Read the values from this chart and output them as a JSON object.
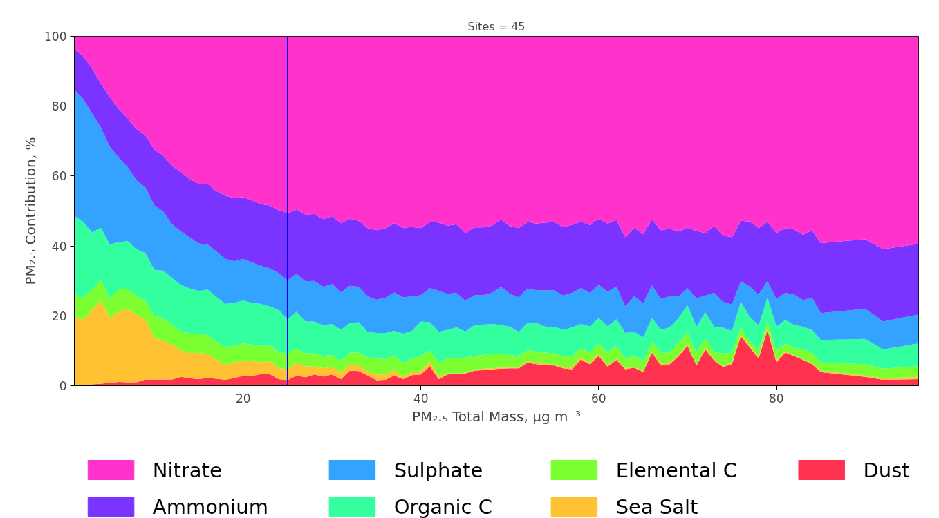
{
  "chart_data": {
    "type": "area",
    "stacked": true,
    "title": "Sites = 45",
    "xlabel": "PM₂.₅ Total Mass, μg m⁻³",
    "ylabel": "PM₂.₅ Contribution, %",
    "x": [
      1,
      2,
      3,
      4,
      5,
      6,
      7,
      8,
      9,
      10,
      11,
      12,
      13,
      14,
      15,
      16,
      17,
      18,
      19,
      20,
      21,
      22,
      23,
      24,
      25,
      26,
      27,
      28,
      29,
      30,
      31,
      32,
      33,
      34,
      35,
      36,
      37,
      38,
      39,
      40,
      41,
      42,
      43,
      44,
      45,
      46,
      47,
      48,
      49,
      50,
      51,
      52,
      53,
      54,
      55,
      56,
      57,
      58,
      59,
      60,
      61,
      62,
      63,
      64,
      65,
      66,
      67,
      68,
      69,
      70,
      71,
      72,
      73,
      74,
      75,
      76,
      77,
      78,
      79,
      80,
      81,
      82,
      83,
      84,
      85,
      90,
      92,
      96
    ],
    "series": [
      {
        "name": "Dust",
        "color": "#ff3350",
        "values": [
          0.3,
          0.3,
          0.4,
          0.6,
          0.8,
          1.1,
          1.0,
          1.0,
          1.8,
          1.7,
          1.8,
          1.8,
          2.5,
          2.1,
          1.9,
          2.2,
          2.0,
          1.7,
          2.2,
          2.8,
          2.8,
          3.3,
          3.3,
          1.9,
          1.6,
          2.9,
          2.4,
          3.2,
          2.6,
          3.2,
          1.9,
          4.3,
          4.2,
          2.9,
          1.6,
          1.7,
          2.9,
          1.9,
          3.0,
          3.2,
          5.6,
          1.9,
          3.2,
          3.4,
          3.5,
          4.3,
          4.5,
          4.7,
          4.9,
          5.0,
          5.0,
          6.6,
          6.2,
          6.0,
          5.8,
          5.0,
          4.7,
          7.5,
          6.2,
          8.5,
          5.5,
          7.4,
          4.7,
          5.2,
          3.9,
          9.5,
          5.8,
          6.2,
          8.5,
          11.4,
          5.8,
          10.4,
          7.2,
          5.4,
          6.2,
          14.2,
          10.9,
          7.8,
          15.9,
          6.7,
          9.5,
          8.5,
          7.4,
          6.2,
          3.9,
          2.5,
          1.7,
          1.9
        ]
      },
      {
        "name": "Sea Salt",
        "color": "#ffc233",
        "values": [
          19.3,
          18.6,
          21.3,
          23.8,
          18.5,
          20.2,
          21.0,
          19.3,
          17.1,
          12.1,
          11.0,
          10.0,
          7.6,
          7.3,
          7.5,
          6.9,
          5.4,
          4.3,
          4.5,
          4.2,
          4.2,
          3.4,
          3.7,
          3.1,
          3.2,
          3.6,
          3.2,
          2.3,
          2.4,
          2.2,
          2.0,
          1.7,
          1.6,
          1.3,
          1.6,
          1.5,
          1.6,
          0.7,
          0.9,
          1.0,
          1.2,
          0.7,
          0.3,
          0.1,
          0.2,
          0.2,
          0.4,
          0.3,
          0.3,
          0.2,
          0.2,
          0.4,
          0.3,
          0.3,
          0.2,
          0.4,
          0.5,
          0.5,
          0.3,
          0.6,
          0.3,
          0.2,
          0.3,
          0.2,
          0.3,
          0.3,
          0.5,
          0.3,
          0.3,
          0.4,
          0.2,
          0.4,
          0.3,
          0.2,
          0.3,
          0.4,
          0.5,
          0.4,
          0.5,
          0.5,
          0.3,
          0.3,
          0.1,
          0.3,
          0.3,
          0.4,
          0.4,
          0.6
        ]
      },
      {
        "name": "Elemental C",
        "color": "#7bff33",
        "values": [
          6.5,
          6.2,
          5.8,
          5.8,
          5.8,
          6.2,
          5.8,
          5.4,
          5.5,
          6.2,
          6.5,
          5.8,
          5.4,
          5.5,
          5.5,
          5.4,
          5.1,
          5.1,
          4.7,
          5.1,
          4.8,
          4.7,
          4.4,
          4.7,
          4.3,
          4.2,
          3.7,
          3.8,
          3.5,
          3.4,
          3.1,
          3.5,
          3.7,
          3.9,
          4.6,
          4.4,
          4.0,
          3.9,
          3.9,
          4.3,
          3.3,
          4.1,
          4.3,
          4.5,
          4.3,
          4.0,
          3.9,
          4.1,
          3.9,
          3.6,
          3.3,
          3.3,
          3.1,
          3.2,
          3.3,
          3.1,
          3.3,
          2.7,
          3.0,
          3.0,
          3.7,
          3.8,
          2.8,
          3.1,
          3.0,
          2.8,
          3.2,
          3.1,
          3.6,
          3.3,
          3.5,
          2.8,
          2.1,
          3.7,
          3.0,
          2.1,
          1.4,
          2.2,
          2.0,
          2.8,
          2.3,
          2.1,
          2.9,
          3.0,
          2.4,
          3.3,
          2.8,
          3.1
        ]
      },
      {
        "name": "Organic C",
        "color": "#33ff9f",
        "values": [
          22.5,
          21.8,
          16.3,
          15.0,
          15.3,
          13.6,
          13.6,
          13.3,
          13.6,
          13.2,
          13.6,
          13.3,
          13.3,
          12.9,
          12.2,
          13.0,
          12.9,
          12.3,
          12.3,
          12.3,
          11.9,
          12.0,
          11.3,
          12.0,
          9.8,
          10.5,
          9.1,
          9.1,
          8.8,
          8.9,
          9.0,
          8.4,
          8.7,
          7.3,
          7.3,
          7.5,
          7.2,
          8.4,
          7.9,
          9.9,
          8.1,
          8.7,
          8.2,
          8.7,
          7.5,
          8.8,
          8.7,
          8.6,
          8.3,
          8.1,
          6.9,
          7.7,
          8.4,
          7.4,
          7.6,
          7.5,
          8.2,
          7.0,
          7.5,
          7.3,
          7.5,
          7.6,
          7.3,
          6.9,
          6.6,
          6.8,
          6.5,
          7.1,
          7.0,
          7.9,
          7.4,
          7.4,
          7.3,
          7.3,
          6.2,
          7.3,
          6.9,
          6.9,
          6.8,
          6.9,
          6.7,
          6.5,
          6.5,
          6.5,
          6.5,
          7.2,
          5.5,
          6.5
        ]
      },
      {
        "name": "Sulphate",
        "color": "#33a3ff",
        "values": [
          36.1,
          35.1,
          34.1,
          28.6,
          27.9,
          24.2,
          21.1,
          19.8,
          18.7,
          18.4,
          17.0,
          15.3,
          15.3,
          14.6,
          13.6,
          12.9,
          13.0,
          12.9,
          11.9,
          11.9,
          11.6,
          10.9,
          10.9,
          10.5,
          11.3,
          10.8,
          11.5,
          11.6,
          11.0,
          11.4,
          10.7,
          10.7,
          10.1,
          10.2,
          9.5,
          10.1,
          11.0,
          10.4,
          9.9,
          7.5,
          9.7,
          11.7,
          10.3,
          9.9,
          8.8,
          8.6,
          8.4,
          8.9,
          10.9,
          9.4,
          9.9,
          9.8,
          9.3,
          10.4,
          10.4,
          9.8,
          9.9,
          10.2,
          9.6,
          9.5,
          9.9,
          9.4,
          7.6,
          10.2,
          9.8,
          9.3,
          8.8,
          8.9,
          6.2,
          4.9,
          8.1,
          4.8,
          9.7,
          7.4,
          7.5,
          5.9,
          8.7,
          8.8,
          4.7,
          7.9,
          7.8,
          8.7,
          7.6,
          9.2,
          7.7,
          8.6,
          8.0,
          8.3
        ]
      },
      {
        "name": "Ammonium",
        "color": "#7b33ff",
        "values": [
          11.7,
          12.2,
          12.9,
          12.6,
          14.3,
          13.9,
          14.0,
          14.6,
          15.0,
          16.0,
          16.0,
          16.7,
          17.1,
          16.7,
          17.1,
          17.4,
          17.3,
          18.1,
          18.1,
          17.7,
          17.7,
          17.7,
          18.0,
          18.1,
          19.2,
          18.5,
          19.1,
          19.1,
          19.4,
          19.4,
          19.8,
          19.2,
          18.9,
          19.5,
          19.9,
          19.9,
          19.8,
          19.9,
          19.8,
          19.2,
          19.0,
          19.6,
          19.5,
          19.6,
          19.4,
          19.4,
          19.4,
          19.2,
          19.3,
          19.4,
          19.8,
          19.1,
          19.1,
          19.4,
          19.5,
          19.6,
          19.4,
          19.1,
          19.4,
          18.9,
          19.5,
          19.0,
          19.8,
          19.6,
          19.8,
          18.9,
          19.7,
          19.3,
          18.5,
          17.3,
          19.3,
          17.9,
          19.1,
          19.0,
          19.3,
          17.3,
          18.6,
          19.0,
          17.0,
          18.9,
          18.5,
          18.6,
          18.7,
          19.3,
          20.0,
          19.9,
          20.7,
          20.2
        ]
      },
      {
        "name": "Nitrate",
        "color": "#ff33cc",
        "values": [
          3.6,
          5.8,
          9.2,
          13.6,
          17.4,
          20.8,
          23.5,
          26.6,
          28.3,
          32.4,
          34.1,
          37.1,
          38.8,
          40.9,
          42.2,
          42.2,
          44.3,
          45.6,
          46.3,
          46.0,
          47.0,
          48.0,
          48.4,
          49.7,
          50.6,
          49.5,
          51.0,
          50.9,
          52.3,
          51.5,
          53.5,
          52.2,
          52.8,
          54.9,
          55.5,
          54.9,
          53.5,
          54.8,
          54.6,
          54.9,
          53.1,
          53.3,
          54.2,
          53.8,
          56.3,
          54.7,
          54.7,
          54.2,
          52.4,
          54.3,
          54.9,
          53.1,
          53.6,
          53.3,
          53.2,
          54.6,
          54.0,
          53.0,
          54.0,
          52.2,
          53.6,
          52.6,
          57.5,
          54.8,
          56.6,
          52.4,
          55.5,
          55.1,
          55.9,
          54.8,
          55.7,
          56.3,
          54.3,
          57.0,
          57.5,
          52.8,
          53.0,
          54.9,
          53.1,
          56.3,
          54.9,
          55.3,
          56.8,
          55.5,
          59.2,
          58.1,
          60.9,
          59.4
        ]
      }
    ],
    "xlim": [
      1,
      96
    ],
    "ylim": [
      0,
      100
    ],
    "xticks": [
      20,
      40,
      60,
      80
    ],
    "yticks": [
      0,
      20,
      40,
      60,
      80,
      100
    ],
    "ref_lines": [
      {
        "axis": "x",
        "value": 25,
        "color": "#0000ff",
        "line_style": "solid"
      }
    ],
    "grid": false,
    "legend": "bottom"
  }
}
